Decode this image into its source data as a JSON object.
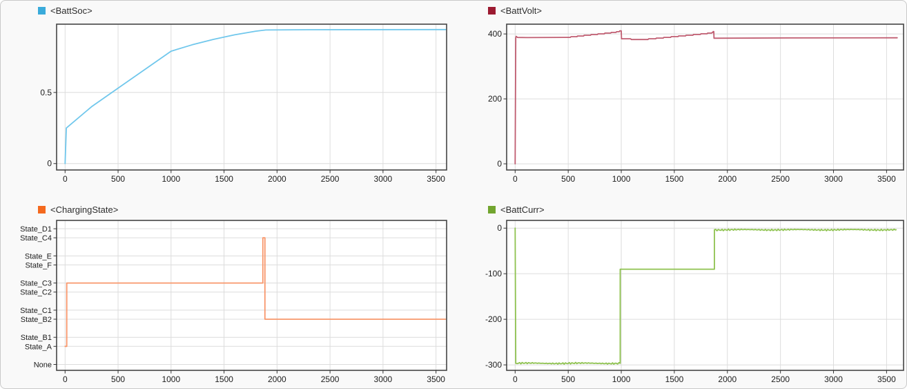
{
  "styles": {
    "page_background": "#f9f9f9",
    "frame_border": "#c9c9c9",
    "plot_background": "#ffffff",
    "axis_border": "#454545",
    "grid_color": "#dcdcdc",
    "tick_color": "#333333",
    "tick_text_color": "#1c1c1c"
  },
  "chart_data": [
    {
      "id": "battsoc",
      "type": "line",
      "legend": "<BattSoc>",
      "swatch_color": "#3aabdb",
      "line_color": "#70c7ec",
      "xlim": [
        -80,
        3600
      ],
      "ylim": [
        -0.045,
        0.98
      ],
      "x_ticks": [
        0,
        500,
        1000,
        1500,
        2000,
        2500,
        3000,
        3500
      ],
      "y_ticks": [
        {
          "v": 0,
          "label": "0"
        },
        {
          "v": 0.5,
          "label": "0.5"
        }
      ],
      "points": [
        [
          0,
          0
        ],
        [
          12,
          0.25
        ],
        [
          250,
          0.4
        ],
        [
          500,
          0.53
        ],
        [
          750,
          0.66
        ],
        [
          1000,
          0.79
        ],
        [
          1200,
          0.835
        ],
        [
          1400,
          0.873
        ],
        [
          1600,
          0.905
        ],
        [
          1800,
          0.931
        ],
        [
          1895,
          0.939
        ],
        [
          2300,
          0.941
        ],
        [
          3590,
          0.942
        ]
      ]
    },
    {
      "id": "battvolt",
      "type": "line",
      "legend": "<BattVolt>",
      "swatch_color": "#9c1a31",
      "line_color": "#c05c70",
      "xlim": [
        -80,
        3660
      ],
      "ylim": [
        -19,
        430
      ],
      "x_ticks": [
        0,
        500,
        1000,
        1500,
        2000,
        2500,
        3000,
        3500
      ],
      "y_ticks": [
        {
          "v": 0,
          "label": "0"
        },
        {
          "v": 200,
          "label": "200"
        },
        {
          "v": 400,
          "label": "400"
        }
      ],
      "points": [
        [
          0,
          0
        ],
        [
          6,
          388
        ],
        [
          10,
          392.5
        ],
        [
          22,
          389.2
        ],
        [
          120,
          388.7
        ],
        [
          470,
          389.3
        ],
        [
          520,
          389.3
        ],
        [
          526,
          391.5
        ],
        [
          582,
          391.5
        ],
        [
          588,
          393.7
        ],
        [
          645,
          393.7
        ],
        [
          651,
          395.9
        ],
        [
          710,
          395.9
        ],
        [
          716,
          398.1
        ],
        [
          775,
          398.1
        ],
        [
          781,
          400.3
        ],
        [
          840,
          400.3
        ],
        [
          846,
          402.5
        ],
        [
          900,
          402.5
        ],
        [
          906,
          404.7
        ],
        [
          950,
          404.7
        ],
        [
          956,
          406.9
        ],
        [
          980,
          406.9
        ],
        [
          986,
          409.3
        ],
        [
          1000,
          409.5
        ],
        [
          1002,
          385.2
        ],
        [
          1088,
          385.2
        ],
        [
          1094,
          382.8
        ],
        [
          1252,
          382.8
        ],
        [
          1258,
          385
        ],
        [
          1325,
          385
        ],
        [
          1331,
          387.2
        ],
        [
          1395,
          387.2
        ],
        [
          1401,
          389.4
        ],
        [
          1465,
          389.4
        ],
        [
          1471,
          391.6
        ],
        [
          1535,
          391.6
        ],
        [
          1541,
          393.8
        ],
        [
          1605,
          393.8
        ],
        [
          1611,
          396
        ],
        [
          1675,
          396
        ],
        [
          1681,
          398.2
        ],
        [
          1745,
          398.2
        ],
        [
          1751,
          400.4
        ],
        [
          1808,
          400.4
        ],
        [
          1814,
          402.6
        ],
        [
          1852,
          402.6
        ],
        [
          1858,
          404.8
        ],
        [
          1864,
          404.8
        ],
        [
          1866,
          407.2
        ],
        [
          1872,
          407.2
        ],
        [
          1874,
          386.8
        ],
        [
          2600,
          387.6
        ],
        [
          3600,
          388
        ]
      ]
    },
    {
      "id": "chargingstate",
      "type": "line",
      "legend": "<ChargingState>",
      "swatch_color": "#f4691e",
      "line_color": "#f8976b",
      "categorical_y": true,
      "xlim": [
        -80,
        3600
      ],
      "ylim": [
        -0.65,
        15.92
      ],
      "x_ticks": [
        0,
        500,
        1000,
        1500,
        2000,
        2500,
        3000,
        3500
      ],
      "y_ticks": [
        {
          "v": 15,
          "label": "State_D1"
        },
        {
          "v": 14,
          "label": "State_C4"
        },
        {
          "v": 12,
          "label": "State_E"
        },
        {
          "v": 11,
          "label": "State_F"
        },
        {
          "v": 9,
          "label": "State_C3"
        },
        {
          "v": 8,
          "label": "State_C2"
        },
        {
          "v": 6,
          "label": "State_C1"
        },
        {
          "v": 5,
          "label": "State_B2"
        },
        {
          "v": 3,
          "label": "State_B1"
        },
        {
          "v": 2,
          "label": "State_A"
        },
        {
          "v": 0,
          "label": "None"
        }
      ],
      "points": [
        [
          0,
          2
        ],
        [
          16,
          2
        ],
        [
          16,
          9
        ],
        [
          1866,
          9
        ],
        [
          1866,
          14
        ],
        [
          1886,
          14
        ],
        [
          1886,
          5
        ],
        [
          3590,
          5
        ]
      ]
    },
    {
      "id": "battcurr",
      "type": "line",
      "legend": "<BattCurr>",
      "swatch_color": "#72a52f",
      "line_color": "#8ec24f",
      "xlim": [
        -80,
        3660
      ],
      "ylim": [
        -312,
        17
      ],
      "x_ticks": [
        0,
        500,
        1000,
        1500,
        2000,
        2500,
        3000,
        3500
      ],
      "y_ticks": [
        {
          "v": 0,
          "label": "0"
        },
        {
          "v": -100,
          "label": "-100"
        },
        {
          "v": -200,
          "label": "-200"
        },
        {
          "v": -300,
          "label": "-300"
        }
      ],
      "points": [
        [
          0,
          0
        ],
        [
          6,
          -296.5
        ],
        [
          990,
          -296.5
        ],
        [
          990,
          -90
        ],
        [
          1878,
          -90
        ],
        [
          1878,
          -3.5
        ],
        [
          3590,
          -3.5
        ]
      ],
      "noisy_spans": [
        [
          10,
          988,
          2.3
        ],
        [
          1880,
          3590,
          2.3
        ]
      ]
    }
  ]
}
